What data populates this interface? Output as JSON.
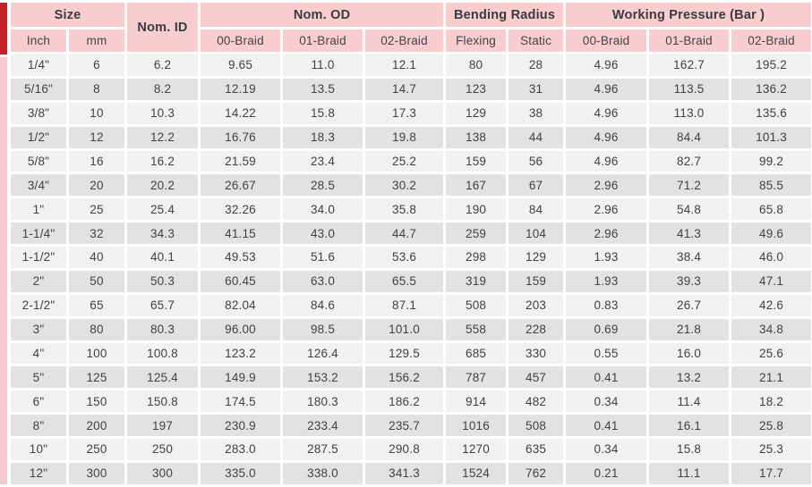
{
  "table": {
    "groups": {
      "size": "Size",
      "nom_id": "Nom. ID",
      "nom_od": "Nom. OD",
      "bending_radius": "Bending Radius",
      "working_pressure": "Working Pressure (Bar )"
    },
    "subheaders": [
      "Inch",
      "mm",
      "00-Braid",
      "01-Braid",
      "02-Braid",
      "Flexing",
      "Static",
      "00-Braid",
      "01-Braid",
      "02-Braid"
    ],
    "rows": [
      [
        "1/4\"",
        "6",
        "6.2",
        "9.65",
        "11.0",
        "12.1",
        "80",
        "28",
        "4.96",
        "162.7",
        "195.2"
      ],
      [
        "5/16\"",
        "8",
        "8.2",
        "12.19",
        "13.5",
        "14.7",
        "123",
        "31",
        "4.96",
        "113.5",
        "136.2"
      ],
      [
        "3/8\"",
        "10",
        "10.3",
        "14.22",
        "15.8",
        "17.3",
        "129",
        "38",
        "4.96",
        "113.0",
        "135.6"
      ],
      [
        "1/2\"",
        "12",
        "12.2",
        "16.76",
        "18.3",
        "19.8",
        "138",
        "44",
        "4.96",
        "84.4",
        "101.3"
      ],
      [
        "5/8\"",
        "16",
        "16.2",
        "21.59",
        "23.4",
        "25.2",
        "159",
        "56",
        "4.96",
        "82.7",
        "99.2"
      ],
      [
        "3/4\"",
        "20",
        "20.2",
        "26.67",
        "28.5",
        "30.2",
        "167",
        "67",
        "2.96",
        "71.2",
        "85.5"
      ],
      [
        "1\"",
        "25",
        "25.4",
        "32.26",
        "34.0",
        "35.8",
        "190",
        "84",
        "2.96",
        "54.8",
        "65.8"
      ],
      [
        "1-1/4\"",
        "32",
        "34.3",
        "41.15",
        "43.0",
        "44.7",
        "259",
        "104",
        "2.96",
        "41.3",
        "49.6"
      ],
      [
        "1-1/2\"",
        "40",
        "40.1",
        "49.53",
        "51.6",
        "53.6",
        "298",
        "129",
        "1.93",
        "38.4",
        "46.0"
      ],
      [
        "2\"",
        "50",
        "50.3",
        "60.45",
        "63.0",
        "65.5",
        "319",
        "159",
        "1.93",
        "39.3",
        "47.1"
      ],
      [
        "2-1/2\"",
        "65",
        "65.7",
        "82.04",
        "84.6",
        "87.1",
        "508",
        "203",
        "0.83",
        "26.7",
        "42.6"
      ],
      [
        "3\"",
        "80",
        "80.3",
        "96.00",
        "98.5",
        "101.0",
        "558",
        "228",
        "0.69",
        "21.8",
        "34.8"
      ],
      [
        "4\"",
        "100",
        "100.8",
        "123.2",
        "126.4",
        "129.5",
        "685",
        "330",
        "0.55",
        "16.0",
        "25.6"
      ],
      [
        "5\"",
        "125",
        "125.4",
        "149.9",
        "153.2",
        "156.2",
        "787",
        "457",
        "0.41",
        "13.2",
        "21.1"
      ],
      [
        "6\"",
        "150",
        "150.8",
        "174.5",
        "180.3",
        "186.2",
        "914",
        "482",
        "0.34",
        "11.4",
        "18.2"
      ],
      [
        "8\"",
        "200",
        "197",
        "230.9",
        "233.4",
        "235.7",
        "1016",
        "508",
        "0.41",
        "16.1",
        "25.8"
      ],
      [
        "10\"",
        "250",
        "250",
        "283.0",
        "287.5",
        "290.8",
        "1270",
        "635",
        "0.34",
        "15.8",
        "25.3"
      ],
      [
        "12\"",
        "300",
        "300",
        "335.0",
        "338.0",
        "341.3",
        "1524",
        "762",
        "0.21",
        "11.1",
        "17.7"
      ]
    ]
  },
  "colors": {
    "header_pink": "#f8cdd0",
    "accent_red": "#c32127",
    "accent_pink": "#f6c9cc",
    "row_light": "#f1f1f2",
    "row_dark": "#e2e2e3",
    "text": "#414044"
  }
}
